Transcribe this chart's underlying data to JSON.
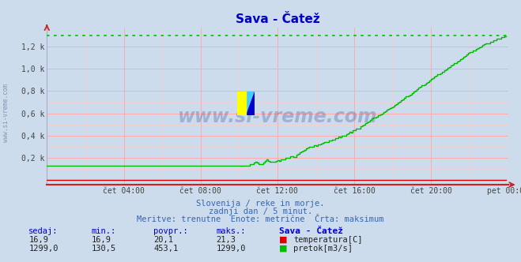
{
  "title": "Sava - Čatež",
  "title_color": "#0000cc",
  "bg_color": "#ccdcec",
  "plot_bg_color": "#ccdcec",
  "grid_color_major": "#ffaaaa",
  "grid_color_minor": "#ffcccc",
  "ylabel_ticks": [
    "0,2 k",
    "0,4 k",
    "0,6 k",
    "0,8 k",
    "1,0 k",
    "1,2 k"
  ],
  "ylabel_values": [
    200,
    400,
    600,
    800,
    1000,
    1200
  ],
  "ymax": 1370,
  "ymin": -40,
  "xmin": 0,
  "xmax": 288,
  "temp_color": "#dd0000",
  "flow_color": "#00bb00",
  "max_line_color": "#00cc00",
  "max_flow": 1299,
  "watermark_text": "www.si-vreme.com",
  "watermark_color": "#223388",
  "watermark_alpha": 0.25,
  "subtitle1": "Slovenija / reke in morje.",
  "subtitle2": "zadnji dan / 5 minut.",
  "subtitle3": "Meritve: trenutne  Enote: metrične  Črta: maksimum",
  "subtitle_color": "#3366bb",
  "table_headers": [
    "sedaj:",
    "min.:",
    "povpr.:",
    "maks.:",
    "Sava - Čatež"
  ],
  "table_header_color": "#0000cc",
  "temp_row": [
    "16,9",
    "16,9",
    "20,1",
    "21,3"
  ],
  "flow_row": [
    "1299,0",
    "130,5",
    "453,1",
    "1299,0"
  ],
  "table_data_color": "#222222",
  "temp_label": "temperatura[C]",
  "flow_label": "pretok[m3/s]",
  "xlabel_ticks": [
    "čet 04:00",
    "čet 08:00",
    "čet 12:00",
    "čet 16:00",
    "čet 20:00",
    "pet 00:00"
  ],
  "xtick_positions": [
    48,
    96,
    144,
    192,
    240,
    288
  ]
}
